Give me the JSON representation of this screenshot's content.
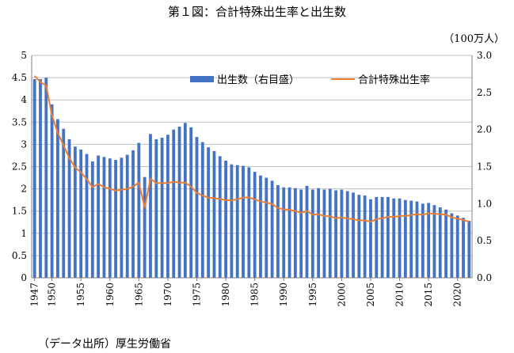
{
  "chart_data": {
    "type": "bar+line",
    "title": "第１図：合計特殊出生率と出生数",
    "unit_right": "（100万人）",
    "source": "（データ出所）厚生労働省",
    "x": [
      1947,
      1948,
      1949,
      1950,
      1951,
      1952,
      1953,
      1954,
      1955,
      1956,
      1957,
      1958,
      1959,
      1960,
      1961,
      1962,
      1963,
      1964,
      1965,
      1966,
      1967,
      1968,
      1969,
      1970,
      1971,
      1972,
      1973,
      1974,
      1975,
      1976,
      1977,
      1978,
      1979,
      1980,
      1981,
      1982,
      1983,
      1984,
      1985,
      1986,
      1987,
      1988,
      1989,
      1990,
      1991,
      1992,
      1993,
      1994,
      1995,
      1996,
      1997,
      1998,
      1999,
      2000,
      2001,
      2002,
      2003,
      2004,
      2005,
      2006,
      2007,
      2008,
      2009,
      2010,
      2011,
      2012,
      2013,
      2014,
      2015,
      2016,
      2017,
      2018,
      2019,
      2020,
      2021,
      2022
    ],
    "x_tick_labels": [
      "1947",
      "1950",
      "1955",
      "1960",
      "1965",
      "1970",
      "1975",
      "1980",
      "1985",
      "1990",
      "1995",
      "2000",
      "2005",
      "2010",
      "2015",
      "2020"
    ],
    "series": [
      {
        "name": "出生数（右目盛）",
        "type": "bar",
        "axis": "right",
        "color": "#4472C4",
        "values": [
          2.68,
          2.68,
          2.7,
          2.34,
          2.14,
          2.01,
          1.87,
          1.77,
          1.73,
          1.67,
          1.57,
          1.65,
          1.63,
          1.61,
          1.59,
          1.62,
          1.66,
          1.72,
          1.82,
          1.36,
          1.94,
          1.87,
          1.89,
          1.93,
          2.0,
          2.04,
          2.09,
          2.03,
          1.9,
          1.83,
          1.76,
          1.71,
          1.64,
          1.58,
          1.53,
          1.52,
          1.51,
          1.49,
          1.43,
          1.38,
          1.35,
          1.31,
          1.25,
          1.22,
          1.22,
          1.21,
          1.19,
          1.24,
          1.19,
          1.21,
          1.19,
          1.2,
          1.18,
          1.19,
          1.17,
          1.15,
          1.12,
          1.11,
          1.06,
          1.09,
          1.09,
          1.09,
          1.07,
          1.07,
          1.05,
          1.04,
          1.03,
          1.0,
          1.01,
          0.98,
          0.95,
          0.92,
          0.87,
          0.84,
          0.81,
          0.77
        ]
      },
      {
        "name": "合計特殊出生率",
        "type": "line",
        "axis": "left",
        "color": "#ED7D31",
        "values": [
          4.54,
          4.4,
          4.32,
          3.65,
          3.26,
          2.98,
          2.69,
          2.48,
          2.37,
          2.22,
          2.04,
          2.11,
          2.04,
          2.0,
          1.96,
          1.98,
          2.0,
          2.05,
          2.14,
          1.58,
          2.23,
          2.13,
          2.13,
          2.13,
          2.16,
          2.14,
          2.14,
          2.05,
          1.91,
          1.85,
          1.8,
          1.79,
          1.77,
          1.75,
          1.74,
          1.77,
          1.8,
          1.81,
          1.76,
          1.72,
          1.69,
          1.66,
          1.57,
          1.54,
          1.53,
          1.5,
          1.46,
          1.5,
          1.42,
          1.43,
          1.39,
          1.38,
          1.34,
          1.36,
          1.33,
          1.32,
          1.29,
          1.29,
          1.26,
          1.32,
          1.34,
          1.37,
          1.37,
          1.39,
          1.39,
          1.41,
          1.43,
          1.42,
          1.45,
          1.44,
          1.43,
          1.42,
          1.36,
          1.33,
          1.3,
          1.26
        ]
      }
    ],
    "y_left": {
      "min": 0,
      "max": 5,
      "step": 0.5,
      "tick_labels": [
        "0",
        "0.5",
        "1",
        "1.5",
        "2",
        "2.5",
        "3",
        "3.5",
        "4",
        "4.5",
        "5"
      ]
    },
    "y_right": {
      "min": 0,
      "max": 3,
      "step": 0.5,
      "tick_labels": [
        "0.0",
        "0.5",
        "1.0",
        "1.5",
        "2.0",
        "2.5",
        "3.0"
      ]
    },
    "gridlines": true,
    "legend_position": "top-center"
  }
}
